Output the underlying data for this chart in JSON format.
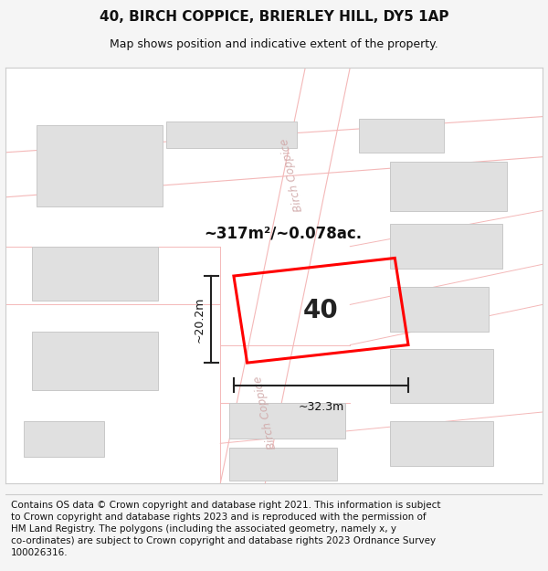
{
  "title": "40, BIRCH COPPICE, BRIERLEY HILL, DY5 1AP",
  "subtitle": "Map shows position and indicative extent of the property.",
  "footer": "Contains OS data © Crown copyright and database right 2021. This information is subject to Crown copyright and database rights 2023 and is reproduced with the permission of HM Land Registry. The polygons (including the associated geometry, namely x, y co-ordinates) are subject to Crown copyright and database rights 2023 Ordnance Survey 100026316.",
  "area_label": "~317m²/~0.078ac.",
  "width_label": "~32.3m",
  "height_label": "~20.2m",
  "property_number": "40",
  "bg_color": "#f5f5f5",
  "map_bg": "#ffffff",
  "road_line_color": "#f4b8b8",
  "building_fill": "#e0e0e0",
  "building_edge": "#c8c8c8",
  "plot_color": "#ff0000",
  "dim_color": "#222222",
  "road_label_color": "#d0a8a8",
  "title_fontsize": 11,
  "subtitle_fontsize": 9,
  "footer_fontsize": 7.5,
  "map_border_color": "#cccccc"
}
